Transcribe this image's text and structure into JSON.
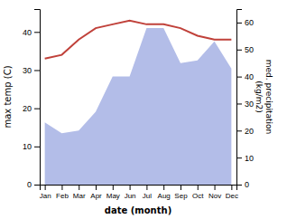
{
  "chart_data": {
    "type": "line",
    "categories": [
      "Jan",
      "Feb",
      "Mar",
      "Apr",
      "May",
      "Jun",
      "Jul",
      "Aug",
      "Sep",
      "Oct",
      "Nov",
      "Dec"
    ],
    "xlabel": "date (month)",
    "ylabel": "max temp (C)",
    "y2label": "med. precipitation\n(kg/m2)",
    "series": [
      {
        "type": "area",
        "axis": "y2",
        "color": "#b3bde8",
        "values": [
          23,
          19,
          20,
          27,
          40,
          40,
          58,
          58,
          45,
          46,
          53,
          43
        ]
      },
      {
        "type": "line",
        "color": "#c0413a",
        "values": [
          33,
          34,
          38,
          41,
          42,
          43,
          42,
          42,
          41,
          39,
          38,
          38
        ]
      }
    ],
    "ylim": [
      0,
      46
    ],
    "yticks": [
      0,
      10,
      20,
      30,
      40
    ],
    "y2lim": [
      0,
      65
    ],
    "y2ticks": [
      0,
      10,
      20,
      30,
      40,
      50,
      60
    ],
    "grid": false
  }
}
